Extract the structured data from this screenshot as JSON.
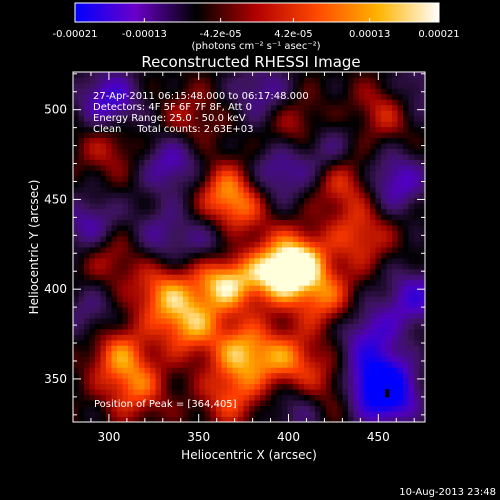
{
  "chart_data": {
    "type": "heatmap",
    "title": "Reconstructed RHESSI Image",
    "xlabel": "Heliocentric X (arcsec)",
    "ylabel": "Heliocentric Y (arcsec)",
    "xlim": [
      280,
      476
    ],
    "ylim": [
      326,
      521
    ],
    "x_ticks": [
      300,
      350,
      400,
      450
    ],
    "y_ticks": [
      350,
      400,
      450,
      500
    ],
    "colorbar": {
      "min": -0.00021,
      "max": 0.00021,
      "tick_values": [
        -0.00021,
        -0.00013,
        -4.2e-05,
        4.2e-05,
        0.00013,
        0.00021
      ],
      "tick_labels": [
        "-0.00021",
        "-0.00013",
        "-4.2e-05",
        "4.2e-05",
        "0.00013",
        "0.00021"
      ],
      "units_label": "(photons cm⁻² s⁻¹ asec⁻²)",
      "color_stops": [
        "#0000ff",
        "#6a00c8",
        "#000000",
        "#b40000",
        "#ff4a00",
        "#ffb400",
        "#ffffff"
      ]
    },
    "info_lines": [
      "27-Apr-2011 06:15:48.000 to 06:17:48.000",
      "Detectors: 4F 5F 6F 7F 8F, Att 0",
      "Energy Range: 25.0 - 50.0 keV",
      "Clean     Total counts: 2.63E+03"
    ],
    "peak_label": "Position of Peak = [364,405]",
    "peak_position": [
      364,
      405
    ],
    "minimum_position": [
      455,
      342
    ],
    "intensity_features": [
      {
        "x": 364,
        "y": 405,
        "level": 0.95
      },
      {
        "x": 405,
        "y": 415,
        "level": 0.9
      },
      {
        "x": 392,
        "y": 408,
        "level": 0.7
      },
      {
        "x": 330,
        "y": 398,
        "level": 0.65
      },
      {
        "x": 345,
        "y": 380,
        "level": 0.7
      },
      {
        "x": 375,
        "y": 365,
        "level": 0.75
      },
      {
        "x": 400,
        "y": 360,
        "level": 0.6
      },
      {
        "x": 305,
        "y": 365,
        "level": 0.6
      },
      {
        "x": 315,
        "y": 345,
        "level": 0.55
      },
      {
        "x": 368,
        "y": 340,
        "level": 0.5
      },
      {
        "x": 420,
        "y": 395,
        "level": 0.55
      },
      {
        "x": 440,
        "y": 430,
        "level": 0.5
      },
      {
        "x": 365,
        "y": 455,
        "level": 0.55
      },
      {
        "x": 372,
        "y": 442,
        "level": 0.45
      },
      {
        "x": 430,
        "y": 460,
        "level": 0.5
      },
      {
        "x": 455,
        "y": 500,
        "level": 0.45
      },
      {
        "x": 300,
        "y": 420,
        "level": 0.4
      },
      {
        "x": 300,
        "y": 480,
        "level": 0.35
      },
      {
        "x": 405,
        "y": 490,
        "level": 0.4
      },
      {
        "x": 345,
        "y": 495,
        "level": 0.3
      },
      {
        "x": 420,
        "y": 345,
        "level": 0.35
      },
      {
        "x": 455,
        "y": 342,
        "level": -0.95
      },
      {
        "x": 448,
        "y": 350,
        "level": -0.6
      },
      {
        "x": 300,
        "y": 505,
        "level": -0.7
      },
      {
        "x": 290,
        "y": 435,
        "level": -0.55
      },
      {
        "x": 335,
        "y": 470,
        "level": -0.55
      },
      {
        "x": 395,
        "y": 465,
        "level": -0.5
      },
      {
        "x": 420,
        "y": 478,
        "level": -0.45
      },
      {
        "x": 460,
        "y": 460,
        "level": -0.6
      },
      {
        "x": 470,
        "y": 395,
        "level": -0.6
      },
      {
        "x": 445,
        "y": 375,
        "level": -0.55
      },
      {
        "x": 360,
        "y": 425,
        "level": -0.45
      },
      {
        "x": 330,
        "y": 430,
        "level": -0.4
      },
      {
        "x": 405,
        "y": 335,
        "level": -0.4
      },
      {
        "x": 290,
        "y": 385,
        "level": -0.35
      },
      {
        "x": 385,
        "y": 510,
        "level": -0.45
      },
      {
        "x": 470,
        "y": 510,
        "level": -0.4
      }
    ]
  },
  "timestamp": "10-Aug-2013 23:48"
}
